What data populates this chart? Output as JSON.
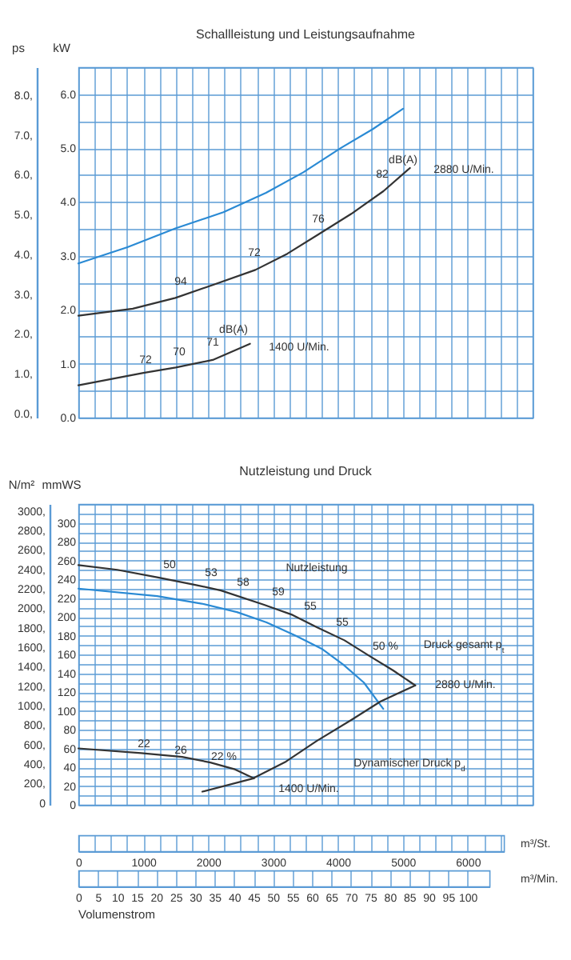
{
  "chart_data": [
    {
      "type": "line",
      "title": "Schallleistung und Leistungsaufnahme",
      "ylabel": "kW",
      "y2label": "ps",
      "xlim": [
        0,
        7000
      ],
      "xticks": [
        {
          "value": 0,
          "label": null
        },
        {
          "value": 250,
          "label": null
        },
        {
          "value": 500,
          "label": null
        },
        {
          "value": 750,
          "label": null
        },
        {
          "value": 1000,
          "label": null
        },
        {
          "value": 1250,
          "label": null
        },
        {
          "value": 1500,
          "label": null
        },
        {
          "value": 1750,
          "label": null
        },
        {
          "value": 2000,
          "label": null
        },
        {
          "value": 2250,
          "label": null
        },
        {
          "value": 2500,
          "label": null
        },
        {
          "value": 2750,
          "label": null
        },
        {
          "value": 3000,
          "label": null
        },
        {
          "value": 3250,
          "label": null
        },
        {
          "value": 3500,
          "label": null
        },
        {
          "value": 3750,
          "label": null
        },
        {
          "value": 4000,
          "label": null
        },
        {
          "value": 4250,
          "label": null
        },
        {
          "value": 4500,
          "label": null
        },
        {
          "value": 4750,
          "label": null
        },
        {
          "value": 5000,
          "label": null
        },
        {
          "value": 5250,
          "label": null
        },
        {
          "value": 5500,
          "label": null
        },
        {
          "value": 5750,
          "label": null
        },
        {
          "value": 6000,
          "label": null
        },
        {
          "value": 6250,
          "label": null
        },
        {
          "value": 6500,
          "label": null
        },
        {
          "value": 6750,
          "label": null
        },
        {
          "value": 7000,
          "label": null
        }
      ],
      "ylim": [
        0,
        6.5
      ],
      "yticks": [
        {
          "value": 0,
          "label": "0.0"
        },
        {
          "value": 0.5,
          "label": null
        },
        {
          "value": 1,
          "label": "1.0"
        },
        {
          "value": 1.5,
          "label": null
        },
        {
          "value": 2,
          "label": "2.0"
        },
        {
          "value": 2.5,
          "label": null
        },
        {
          "value": 3,
          "label": "3.0"
        },
        {
          "value": 3.5,
          "label": null
        },
        {
          "value": 4,
          "label": "4.0"
        },
        {
          "value": 4.5,
          "label": null
        },
        {
          "value": 5,
          "label": "5.0"
        },
        {
          "value": 5.5,
          "label": null
        },
        {
          "value": 6,
          "label": "6.0"
        },
        {
          "value": 6.5,
          "label": null
        }
      ],
      "y2lim": [
        -0.1,
        8.7
      ],
      "y2ticks": [
        {
          "value": 0,
          "label": "0.0,"
        },
        {
          "value": 1,
          "label": "1.0,"
        },
        {
          "value": 2,
          "label": "2.0,"
        },
        {
          "value": 3,
          "label": "3.0,"
        },
        {
          "value": 4,
          "label": "4.0,"
        },
        {
          "value": 5,
          "label": "5.0,"
        },
        {
          "value": 6,
          "label": "6.0,"
        },
        {
          "value": 7,
          "label": "7.0,"
        },
        {
          "value": 8,
          "label": "8.0,"
        }
      ],
      "grid": true,
      "tick_labels": "y",
      "series": [
        {
          "color": "#2a8ad4",
          "x": [
            0,
            756,
            1495,
            2235,
            2892,
            3467,
            4042,
            4535,
            5004
          ],
          "values": [
            2.86,
            3.16,
            3.51,
            3.81,
            4.17,
            4.55,
            5.0,
            5.35,
            5.73
          ]
        },
        {
          "color": "#333333",
          "x": [
            0,
            838,
            1495,
            2070,
            2728,
            3220,
            3714,
            4206,
            4700,
            5110
          ],
          "values": [
            1.89,
            2.02,
            2.22,
            2.46,
            2.74,
            3.04,
            3.41,
            3.78,
            4.2,
            4.63
          ]
        },
        {
          "color": "#333333",
          "x": [
            0,
            1002,
            1500,
            2070,
            2645
          ],
          "values": [
            0.6,
            0.83,
            0.93,
            1.07,
            1.37
          ]
        }
      ],
      "annotations": [
        "94",
        "72",
        "76",
        "82",
        "dB(A)",
        "2880 U/Min.",
        "72",
        "70",
        "71",
        "dB(A)",
        "1400 U/Min."
      ]
    },
    {
      "type": "line",
      "title": "Nutzleistung und Druck",
      "ylabel": "mmWS",
      "y2label": "N/m²",
      "xlabel": "m³/St.",
      "x2label": "m³/Min.",
      "xlim": [
        0,
        7000
      ],
      "xticks": [
        0,
        {
          "value": 250,
          "label": null
        },
        {
          "value": 500,
          "label": null
        },
        {
          "value": 750,
          "label": null
        },
        1000,
        {
          "value": 1250,
          "label": null
        },
        {
          "value": 1500,
          "label": null
        },
        {
          "value": 1750,
          "label": null
        },
        2000,
        {
          "value": 2250,
          "label": null
        },
        {
          "value": 2500,
          "label": null
        },
        {
          "value": 2750,
          "label": null
        },
        3000,
        {
          "value": 3250,
          "label": null
        },
        {
          "value": 3500,
          "label": null
        },
        {
          "value": 3750,
          "label": null
        },
        4000,
        {
          "value": 4250,
          "label": null
        },
        {
          "value": 4500,
          "label": null
        },
        {
          "value": 4750,
          "label": null
        },
        5000,
        {
          "value": 5250,
          "label": null
        },
        {
          "value": 5500,
          "label": null
        },
        {
          "value": 5750,
          "label": null
        },
        6000,
        {
          "value": 6250,
          "label": null
        },
        {
          "value": 6500,
          "label": null
        },
        {
          "value": 6750,
          "label": null
        },
        {
          "value": 7000,
          "label": null
        }
      ],
      "x2lim": [
        0,
        116.7
      ],
      "x2ticks": [
        0,
        5,
        10,
        15,
        20,
        25,
        30,
        35,
        40,
        45,
        50,
        55,
        60,
        65,
        70,
        75,
        80,
        85,
        90,
        95,
        100
      ],
      "ylim": [
        0,
        320
      ],
      "yticks": [
        0,
        {
          "value": 10,
          "label": null
        },
        20,
        {
          "value": 30,
          "label": null
        },
        40,
        {
          "value": 50,
          "label": null
        },
        60,
        {
          "value": 70,
          "label": null
        },
        80,
        {
          "value": 90,
          "label": null
        },
        100,
        {
          "value": 110,
          "label": null
        },
        120,
        {
          "value": 130,
          "label": null
        },
        140,
        {
          "value": 150,
          "label": null
        },
        160,
        {
          "value": 170,
          "label": null
        },
        180,
        {
          "value": 190,
          "label": null
        },
        200,
        {
          "value": 210,
          "label": null
        },
        220,
        {
          "value": 230,
          "label": null
        },
        240,
        {
          "value": 250,
          "label": null
        },
        260,
        {
          "value": 270,
          "label": null
        },
        280,
        {
          "value": 290,
          "label": null
        },
        300,
        {
          "value": 310,
          "label": null
        },
        {
          "value": 320,
          "label": null
        }
      ],
      "y2lim": [
        -20,
        3070
      ],
      "y2ticks": [
        0,
        {
          "value": 200,
          "label": "200,"
        },
        {
          "value": 400,
          "label": "400,"
        },
        {
          "value": 600,
          "label": "600,"
        },
        {
          "value": 800,
          "label": "800,"
        },
        {
          "value": 1000,
          "label": "1000,"
        },
        {
          "value": 1200,
          "label": "1200,"
        },
        {
          "value": 1400,
          "label": "1400,"
        },
        {
          "value": 1600,
          "label": "1600,"
        },
        {
          "value": 1800,
          "label": "1800,"
        },
        {
          "value": 2000,
          "label": "2000,"
        },
        {
          "value": 2200,
          "label": "2200,"
        },
        {
          "value": 2400,
          "label": "2400,"
        },
        {
          "value": 2600,
          "label": "2600,"
        },
        {
          "value": 2800,
          "label": "2800,"
        },
        {
          "value": 3000,
          "label": "3000,"
        }
      ],
      "grid": true,
      "series": [
        {
          "color": "#333333",
          "x": [
            0,
            600,
            1214,
            1800,
            2198,
            2854,
            3300,
            3674,
            4100,
            4494,
            4850,
            5191
          ],
          "values": [
            255,
            250,
            242,
            234,
            228,
            213,
            202,
            189,
            175,
            158,
            143,
            127
          ]
        },
        {
          "color": "#2a8ad4",
          "x": [
            0,
            1214,
            1900,
            2444,
            2900,
            3346,
            3750,
            4084,
            4400,
            4699
          ],
          "values": [
            230,
            222,
            214,
            205,
            194,
            180,
            166,
            149,
            130,
            102
          ]
        },
        {
          "color": "#333333",
          "x": [
            1911,
            2690,
            3200,
            3674,
            4200,
            4658,
            5191
          ],
          "values": [
            14,
            28,
            46,
            68,
            90,
            110,
            127
          ]
        },
        {
          "color": "#333333",
          "x": [
            0,
            968,
            1600,
            2034,
            2400,
            2706
          ],
          "values": [
            60,
            55,
            51,
            45,
            38,
            28
          ]
        }
      ],
      "annotations": [
        "50",
        "53",
        "58",
        "59",
        "55",
        "55",
        "50 %",
        "Nutzleistung",
        "Druck gesamt p$_{t}$",
        "2880 U/Min.",
        "22",
        "26",
        "22 %",
        "Dynamischer Druck p$_{d}$",
        "1400 U/Min.",
        "Volumenstrom"
      ]
    }
  ]
}
